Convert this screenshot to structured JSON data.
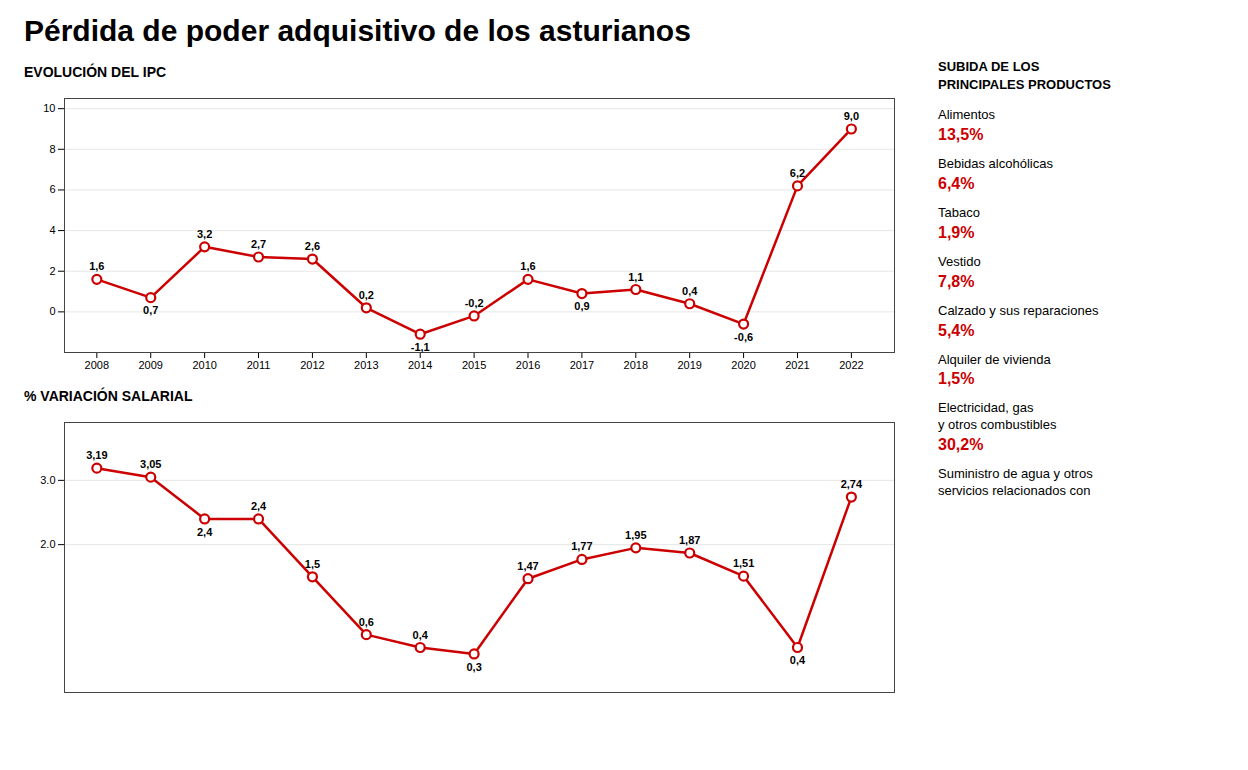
{
  "title": "Pérdida de poder adquisitivo de los asturianos",
  "chart_data": [
    {
      "type": "line",
      "title": "EVOLUCIÓN DEL IPC",
      "x": [
        2008,
        2009,
        2010,
        2011,
        2012,
        2013,
        2014,
        2015,
        2016,
        2017,
        2018,
        2019,
        2020,
        2021,
        2022
      ],
      "values": [
        1.6,
        0.7,
        3.2,
        2.7,
        2.6,
        0.2,
        -1.1,
        -0.2,
        1.6,
        0.9,
        1.1,
        0.4,
        -0.6,
        6.2,
        9.0
      ],
      "value_labels": [
        "1,6",
        "0,7",
        "3,2",
        "2,7",
        "2,6",
        "0,2",
        "-1,1",
        "-0,2",
        "1,6",
        "0,9",
        "1,1",
        "0,4",
        "-0,6",
        "6,2",
        "9,0"
      ],
      "data_labels": true,
      "color": "#cc0000",
      "marker": "circle",
      "xlim": [
        2007.4,
        2022.8
      ],
      "xticks": [
        2008,
        2009,
        2010,
        2011,
        2012,
        2013,
        2014,
        2015,
        2016,
        2017,
        2018,
        2019,
        2020,
        2021,
        2022
      ],
      "ylim": [
        -2.0,
        10.5
      ],
      "yticks": [
        0,
        2,
        4,
        6,
        8,
        10
      ],
      "grid": true
    },
    {
      "type": "line",
      "title": "% VARIACIÓN SALARIAL",
      "x": [
        2008,
        2009,
        2010,
        2011,
        2012,
        2013,
        2014,
        2015,
        2016,
        2017,
        2018,
        2019,
        2020,
        2021,
        2022
      ],
      "values": [
        3.19,
        3.05,
        2.4,
        2.4,
        1.5,
        0.6,
        0.4,
        0.3,
        1.47,
        1.77,
        1.95,
        1.87,
        1.51,
        0.4,
        2.74
      ],
      "value_labels": [
        "3,19",
        "3,05",
        "2,4",
        "2,4",
        "1,5",
        "0,6",
        "0,4",
        "0,3",
        "1,47",
        "1,77",
        "1,95",
        "1,87",
        "1,51",
        "0,4",
        "2,74"
      ],
      "data_labels": true,
      "color": "#cc0000",
      "marker": "circle",
      "xlim": [
        2007.4,
        2022.8
      ],
      "ylim": [
        -0.3,
        3.9
      ],
      "yticks": [
        2,
        3
      ],
      "grid": true,
      "tick_labels": "y"
    }
  ],
  "annotations": {
    "title": "SUBIDA DE LOS\nPRINCIPALES PRODUCTOS",
    "color": "#cc0000",
    "items": [
      {
        "text": "Alimentos",
        "label": "13,5%"
      },
      {
        "text": "Bebidas alcohólicas",
        "label": "6,4%"
      },
      {
        "text": "Tabaco",
        "label": "1,9%"
      },
      {
        "text": "Vestido",
        "label": "7,8%"
      },
      {
        "text": "Calzado y sus reparaciones",
        "label": "5,4%"
      },
      {
        "text": "Alquiler de vivienda",
        "label": "1,5%"
      },
      {
        "text": "Electricidad, gas\ny otros combustibles",
        "label": "30,2%"
      },
      {
        "text": "Suministro de agua y otros\nservicios relacionados con"
      }
    ]
  }
}
